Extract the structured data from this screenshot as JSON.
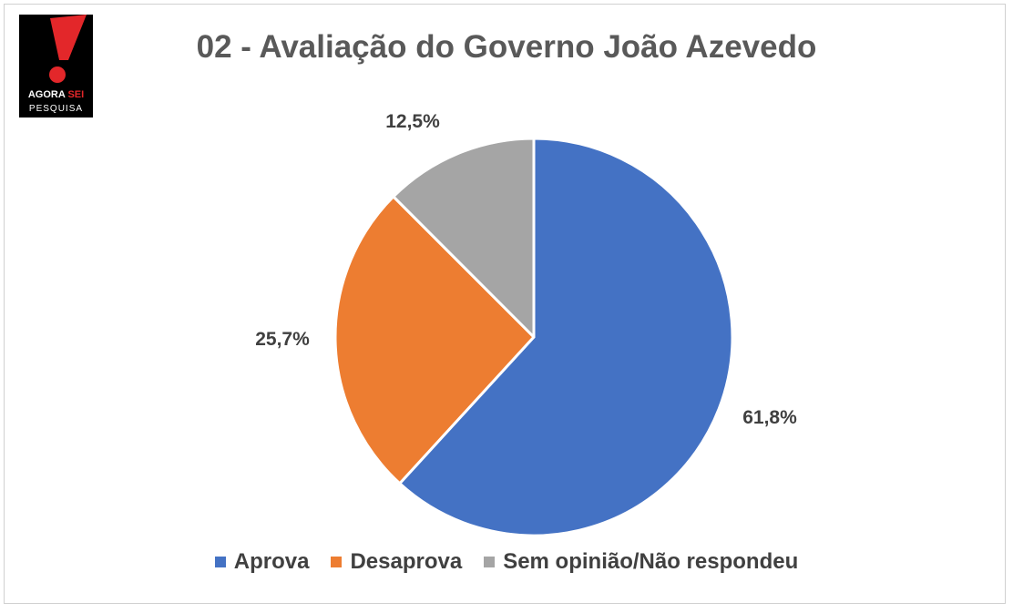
{
  "logo": {
    "line1_main": "AGORA",
    "line1_accent": "SEI",
    "line2": "PESQUISA",
    "icon": "exclamation-icon",
    "accent_color": "#e3272a"
  },
  "chart_data": {
    "type": "pie",
    "title": "02 - Avaliação do Governo João Azevedo",
    "categories": [
      "Aprova",
      "Desaprova",
      "Sem opinião/Não respondeu"
    ],
    "values": [
      61.8,
      25.7,
      12.5
    ],
    "labels": [
      "61,8%",
      "25,7%",
      "12,5%"
    ],
    "colors": [
      "#4472c4",
      "#ed7d31",
      "#a5a5a5"
    ],
    "start_angle": "12 o'clock",
    "direction": "clockwise",
    "legend_position": "bottom"
  }
}
